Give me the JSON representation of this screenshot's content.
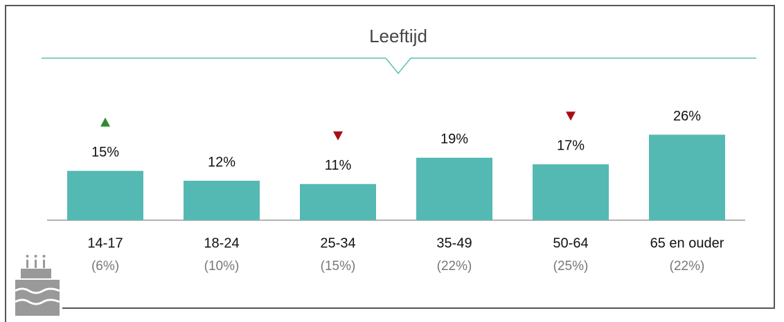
{
  "chart_data": {
    "type": "bar",
    "title": "Leeftijd",
    "categories": [
      "14-17",
      "18-24",
      "25-34",
      "35-49",
      "50-64",
      "65 en ouder"
    ],
    "category_notes": [
      "(6%)",
      "(10%)",
      "(15%)",
      "(22%)",
      "(25%)",
      "(22%)"
    ],
    "values": [
      15,
      12,
      11,
      19,
      17,
      26
    ],
    "value_labels": [
      "15%",
      "12%",
      "11%",
      "19%",
      "17%",
      "26%"
    ],
    "markers": [
      "up",
      null,
      "down",
      null,
      "down",
      null
    ],
    "color": "#55b9b3",
    "ylim": [
      0,
      30
    ]
  }
}
